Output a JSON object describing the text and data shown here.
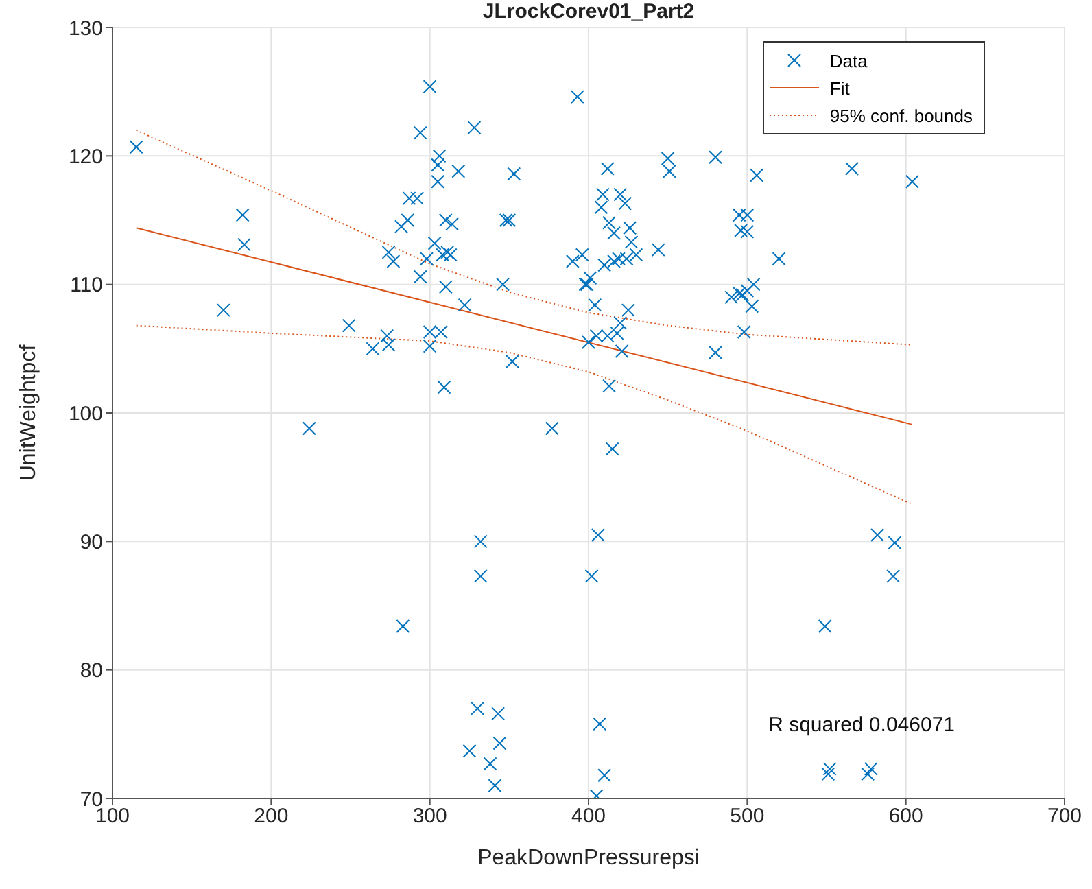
{
  "chart_data": {
    "type": "scatter",
    "title": "JLrockCorev01_Part2",
    "xlabel": "PeakDownPressurepsi",
    "ylabel": "UnitWeightpcf",
    "xlim": [
      100,
      700
    ],
    "ylim": [
      70,
      130
    ],
    "xticks": [
      100,
      200,
      300,
      400,
      500,
      600,
      700
    ],
    "yticks": [
      70,
      80,
      90,
      100,
      110,
      120,
      130
    ],
    "grid": true,
    "legend": "top right",
    "annotations": [
      "R squared 0.046071"
    ],
    "series": [
      {
        "name": "Data",
        "marker": "cross",
        "color": "#0072bd",
        "x": [
          115,
          170,
          182,
          183,
          224,
          249,
          264,
          273,
          274,
          274,
          277,
          283,
          282,
          286,
          287,
          292,
          294,
          294,
          298,
          300,
          300,
          300,
          303,
          305,
          305,
          306,
          307,
          308,
          309,
          310,
          310,
          311,
          314,
          313,
          318,
          322,
          328,
          330,
          332,
          332,
          338,
          341,
          343,
          344,
          325,
          346,
          348,
          350,
          352,
          353,
          377,
          390,
          393,
          396,
          398,
          399,
          400,
          401,
          402,
          404,
          405,
          405,
          406,
          407,
          408,
          409,
          410,
          410,
          412,
          412,
          413,
          413,
          415,
          416,
          416,
          418,
          419,
          420,
          420,
          421,
          423,
          424,
          425,
          426,
          427,
          430,
          444,
          450,
          451,
          480,
          480,
          490,
          495,
          495,
          496,
          497,
          498,
          500,
          500,
          500,
          503,
          504,
          506,
          520,
          549,
          551,
          552,
          566,
          576,
          578,
          582,
          592,
          593,
          604
        ],
        "values": [
          120.7,
          108,
          115.4,
          113.1,
          98.8,
          106.8,
          105,
          106,
          105.3,
          112.5,
          111.8,
          83.4,
          114.5,
          115,
          116.7,
          116.7,
          121.8,
          110.6,
          112,
          125.4,
          106.3,
          105.2,
          113.2,
          119.3,
          118,
          120,
          106.3,
          112.3,
          102,
          115,
          109.8,
          112.5,
          114.7,
          112.3,
          118.8,
          108.4,
          122.2,
          77,
          87.3,
          90,
          72.7,
          71,
          76.6,
          74.3,
          73.7,
          110,
          115,
          115,
          104,
          118.6,
          98.8,
          111.8,
          124.6,
          112.3,
          110,
          110,
          105.5,
          110.5,
          87.3,
          108.4,
          106,
          70.2,
          90.5,
          75.8,
          116,
          117,
          111.5,
          71.8,
          106,
          119,
          102.1,
          114.8,
          97.2,
          114,
          111.8,
          106.2,
          112,
          107,
          117,
          104.8,
          116.3,
          112,
          108,
          114.4,
          113.3,
          112.3,
          112.7,
          119.8,
          118.8,
          119.9,
          104.7,
          109,
          109.3,
          115.4,
          114.2,
          109.2,
          106.3,
          114.1,
          115.4,
          109.5,
          108.3,
          110,
          118.5,
          112,
          83.4,
          71.9,
          72.3,
          119,
          71.9,
          72.3,
          90.5,
          87.3,
          89.9,
          118
        ]
      },
      {
        "name": "Fit",
        "type": "line",
        "color": "#d95319",
        "line_style": "solid",
        "marker": "none",
        "x": [
          115,
          604
        ],
        "values": [
          114.4,
          99.1
        ]
      },
      {
        "name": "95% conf. bounds",
        "type": "line",
        "color": "#d95319",
        "line_style": "dotted",
        "marker": "none",
        "x": [
          115,
          200,
          300,
          350,
          400,
          450,
          500,
          604
        ],
        "values": [
          122,
          117.3,
          111.6,
          109.4,
          107.8,
          106.8,
          106.1,
          105.3
        ]
      },
      {
        "type": "line",
        "color": "#d95319",
        "line_style": "dotted",
        "marker": "none",
        "x": [
          115,
          200,
          300,
          350,
          400,
          450,
          500,
          604
        ],
        "values": [
          106.8,
          106.2,
          105.6,
          104.7,
          103.2,
          101,
          98.6,
          92.9
        ]
      }
    ]
  }
}
